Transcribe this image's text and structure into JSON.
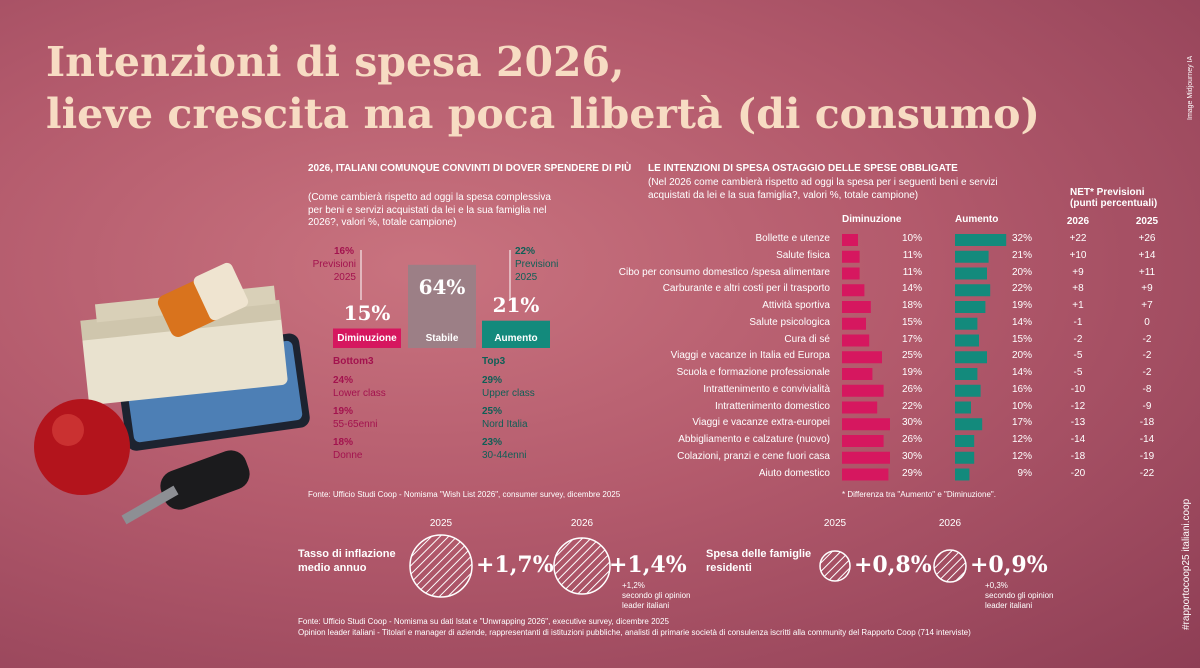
{
  "title_lines": [
    "Intenzioni di spesa 2026,",
    "lieve crescita ma poca libertà (di consumo)"
  ],
  "image_credit": "Image Midjourney IA",
  "hashtag": "#rapportocoop25 italiani.coop",
  "left_panel": {
    "heading": "2026, ITALIANI COMUNQUE CONVINTI DI DOVER SPENDERE DI PIÙ",
    "question": "(Come cambierà rispetto ad oggi la spesa complessiva per beni e servizi acquistati da lei e la sua famiglia nel 2026?, valori %, totale campione)",
    "previous": [
      {
        "value_label": "16%",
        "label": "Previsioni 2025"
      },
      {
        "value_label": "22%",
        "label": "Previsioni 2025"
      }
    ],
    "bars": [
      {
        "name": "Diminuzione",
        "value": 15,
        "value_label": "15%",
        "color": "#d6175f"
      },
      {
        "name": "Stabile",
        "value": 64,
        "value_label": "64%",
        "color": "#9c7f86"
      },
      {
        "name": "Aumento",
        "value": 21,
        "value_label": "21%",
        "color": "#138a7c"
      }
    ],
    "bottom3": {
      "title": "Bottom3",
      "items": [
        {
          "value": "24%",
          "label": "Lower class"
        },
        {
          "value": "19%",
          "label": "55-65enni"
        },
        {
          "value": "18%",
          "label": "Donne"
        }
      ]
    },
    "top3": {
      "title": "Top3",
      "items": [
        {
          "value": "29%",
          "label": "Upper class"
        },
        {
          "value": "25%",
          "label": "Nord Italia"
        },
        {
          "value": "23%",
          "label": "30-44enni"
        }
      ]
    },
    "source": "Fonte: Ufficio Studi Coop - Nomisma \"Wish List 2026\", consumer survey, dicembre 2025"
  },
  "right_chart": {
    "title": "LE INTENZIONI DI SPESA OSTAGGIO DELLE SPESE OBBLIGATE",
    "question": "(Nel 2026 come cambierà rispetto ad oggi la spesa per i seguenti beni e servizi acquistati da lei e la sua famiglia?, valori %, totale campione)",
    "headers": {
      "decrease": "Diminuzione",
      "increase": "Aumento",
      "net": "NET* Previsioni",
      "net_unit": "(punti percentuali)",
      "net_years": [
        "2026",
        "2025"
      ]
    },
    "categories": [
      "Bollette e utenze",
      "Salute fisica",
      "Cibo per consumo domestico /spesa alimentare",
      "Carburante e altri costi per il trasporto",
      "Attività sportiva",
      "Salute psicologica",
      "Cura di sé",
      "Viaggi e vacanze in Italia ed Europa",
      "Scuola e formazione professionale",
      "Intrattenimento e convivialità",
      "Intrattenimento domestico",
      "Viaggi e vacanze extra-europei",
      "Abbigliamento e calzature (nuovo)",
      "Colazioni, pranzi e cene fuori casa",
      "Aiuto domestico"
    ],
    "decrease": {
      "color": "#d6175f",
      "values": [
        10,
        11,
        11,
        14,
        18,
        15,
        17,
        25,
        19,
        26,
        22,
        30,
        26,
        30,
        29
      ],
      "value_labels": [
        "10%",
        "11%",
        "11%",
        "14%",
        "18%",
        "15%",
        "17%",
        "25%",
        "19%",
        "26%",
        "22%",
        "30%",
        "26%",
        "30%",
        "29%"
      ]
    },
    "increase": {
      "color": "#138a7c",
      "values": [
        32,
        21,
        20,
        22,
        19,
        14,
        15,
        20,
        14,
        16,
        10,
        17,
        12,
        12,
        9
      ],
      "value_labels": [
        "32%",
        "21%",
        "20%",
        "22%",
        "19%",
        "14%",
        "15%",
        "20%",
        "14%",
        "16%",
        "10%",
        "17%",
        "12%",
        "12%",
        "9%"
      ]
    },
    "net_2026": [
      "+22",
      "+10",
      "+9",
      "+8",
      "+1",
      "-1",
      "-2",
      "-5",
      "-5",
      "-10",
      "-12",
      "-13",
      "-14",
      "-18",
      "-20"
    ],
    "net_2025": [
      "+26",
      "+14",
      "+11",
      "+9",
      "+7",
      "0",
      "-2",
      "-2",
      "-2",
      "-8",
      "-9",
      "-18",
      "-14",
      "-19",
      "-22"
    ],
    "note": "* Differenza tra \"Aumento\" e \"Diminuzione\"."
  },
  "indicators": [
    {
      "label": "Tasso di inflazione medio annuo",
      "years": [
        "2025",
        "2026"
      ],
      "values": [
        "+1,7%",
        "+1,4%"
      ],
      "opinion_value": "+1,2%",
      "opinion_note": "secondo gli opinion leader italiani"
    },
    {
      "label": "Spesa delle famiglie residenti",
      "years": [
        "2025",
        "2026"
      ],
      "values": [
        "+0,8%",
        "+0,9%"
      ],
      "opinion_value": "+0,3%",
      "opinion_note": "secondo gli opinion leader italiani"
    }
  ],
  "footer": [
    "Fonte: Ufficio Studi Coop - Nomisma su dati Istat e \"Unwrapping 2026\", executive survey, dicembre 2025",
    "Opinion leader italiani -  Titolari e manager di aziende, rappresentanti di istituzioni pubbliche, analisti di primarie società di consulenza iscritti alla community del Rapporto Coop (714 interviste)"
  ]
}
